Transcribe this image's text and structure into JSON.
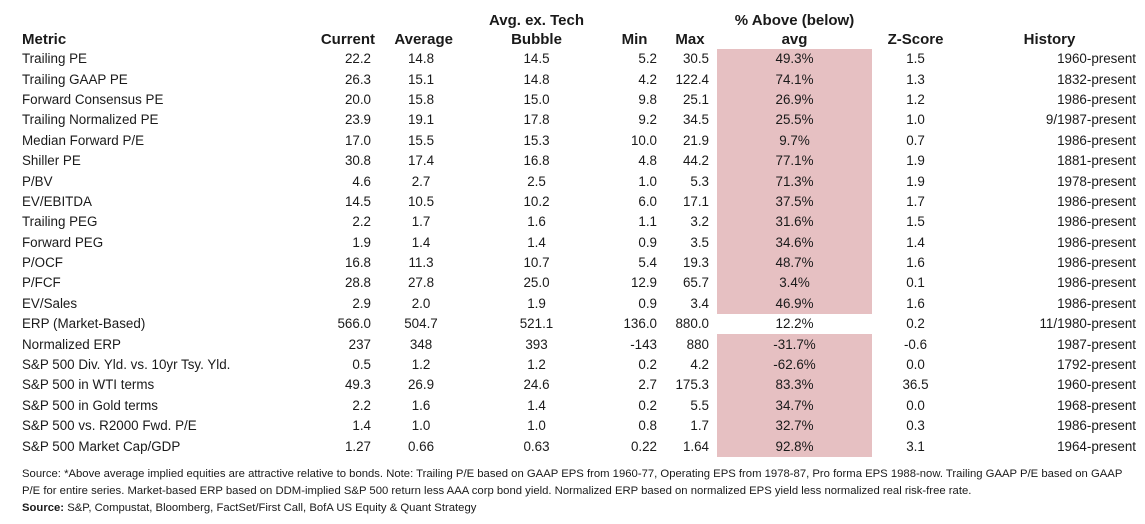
{
  "table": {
    "headers": {
      "metric": "Metric",
      "current": "Current",
      "average": "Average",
      "avg_ex_top": "Avg. ex. Tech",
      "avg_ex_bottom": "Bubble",
      "min": "Min",
      "max": "Max",
      "pct_top": "% Above (below)",
      "pct_bottom": "avg",
      "zscore": "Z-Score",
      "history": "History"
    },
    "highlight_color": "#e6c0c2",
    "rows": [
      {
        "metric": "Trailing PE",
        "current": "22.2",
        "average": "14.8",
        "avg_ex": "14.5",
        "min": "5.2",
        "max": "30.5",
        "pct": "49.3%",
        "z": "1.5",
        "history": "1960-present",
        "highlight": true
      },
      {
        "metric": "Trailing GAAP PE",
        "current": "26.3",
        "average": "15.1",
        "avg_ex": "14.8",
        "min": "4.2",
        "max": "122.4",
        "pct": "74.1%",
        "z": "1.3",
        "history": "1832-present",
        "highlight": true
      },
      {
        "metric": "Forward Consensus PE",
        "current": "20.0",
        "average": "15.8",
        "avg_ex": "15.0",
        "min": "9.8",
        "max": "25.1",
        "pct": "26.9%",
        "z": "1.2",
        "history": "1986-present",
        "highlight": true
      },
      {
        "metric": "Trailing Normalized PE",
        "current": "23.9",
        "average": "19.1",
        "avg_ex": "17.8",
        "min": "9.2",
        "max": "34.5",
        "pct": "25.5%",
        "z": "1.0",
        "history": "9/1987-present",
        "highlight": true
      },
      {
        "metric": "Median Forward P/E",
        "current": "17.0",
        "average": "15.5",
        "avg_ex": "15.3",
        "min": "10.0",
        "max": "21.9",
        "pct": "9.7%",
        "z": "0.7",
        "history": "1986-present",
        "highlight": true
      },
      {
        "metric": "Shiller PE",
        "current": "30.8",
        "average": "17.4",
        "avg_ex": "16.8",
        "min": "4.8",
        "max": "44.2",
        "pct": "77.1%",
        "z": "1.9",
        "history": "1881-present",
        "highlight": true
      },
      {
        "metric": "P/BV",
        "current": "4.6",
        "average": "2.7",
        "avg_ex": "2.5",
        "min": "1.0",
        "max": "5.3",
        "pct": "71.3%",
        "z": "1.9",
        "history": "1978-present",
        "highlight": true
      },
      {
        "metric": "EV/EBITDA",
        "current": "14.5",
        "average": "10.5",
        "avg_ex": "10.2",
        "min": "6.0",
        "max": "17.1",
        "pct": "37.5%",
        "z": "1.7",
        "history": "1986-present",
        "highlight": true
      },
      {
        "metric": "Trailing PEG",
        "current": "2.2",
        "average": "1.7",
        "avg_ex": "1.6",
        "min": "1.1",
        "max": "3.2",
        "pct": "31.6%",
        "z": "1.5",
        "history": "1986-present",
        "highlight": true
      },
      {
        "metric": "Forward PEG",
        "current": "1.9",
        "average": "1.4",
        "avg_ex": "1.4",
        "min": "0.9",
        "max": "3.5",
        "pct": "34.6%",
        "z": "1.4",
        "history": "1986-present",
        "highlight": true
      },
      {
        "metric": "P/OCF",
        "current": "16.8",
        "average": "11.3",
        "avg_ex": "10.7",
        "min": "5.4",
        "max": "19.3",
        "pct": "48.7%",
        "z": "1.6",
        "history": "1986-present",
        "highlight": true
      },
      {
        "metric": "P/FCF",
        "current": "28.8",
        "average": "27.8",
        "avg_ex": "25.0",
        "min": "12.9",
        "max": "65.7",
        "pct": "3.4%",
        "z": "0.1",
        "history": "1986-present",
        "highlight": true
      },
      {
        "metric": "EV/Sales",
        "current": "2.9",
        "average": "2.0",
        "avg_ex": "1.9",
        "min": "0.9",
        "max": "3.4",
        "pct": "46.9%",
        "z": "1.6",
        "history": "1986-present",
        "highlight": true
      },
      {
        "metric": "ERP (Market-Based)",
        "current": "566.0",
        "average": "504.7",
        "avg_ex": "521.1",
        "min": "136.0",
        "max": "880.0",
        "pct": "12.2%",
        "z": "0.2",
        "history": "11/1980-present",
        "highlight": false
      },
      {
        "metric": "Normalized ERP",
        "current": "237",
        "average": "348",
        "avg_ex": "393",
        "min": "-143",
        "max": "880",
        "pct": "-31.7%",
        "z": "-0.6",
        "history": "1987-present",
        "highlight": true
      },
      {
        "metric": "S&P 500 Div. Yld. vs. 10yr Tsy. Yld.",
        "current": "0.5",
        "average": "1.2",
        "avg_ex": "1.2",
        "min": "0.2",
        "max": "4.2",
        "pct": "-62.6%",
        "z": "0.0",
        "history": "1792-present",
        "highlight": true
      },
      {
        "metric": "S&P 500 in WTI terms",
        "current": "49.3",
        "average": "26.9",
        "avg_ex": "24.6",
        "min": "2.7",
        "max": "175.3",
        "pct": "83.3%",
        "z": "36.5",
        "history": "1960-present",
        "highlight": true
      },
      {
        "metric": "S&P 500 in Gold terms",
        "current": "2.2",
        "average": "1.6",
        "avg_ex": "1.4",
        "min": "0.2",
        "max": "5.5",
        "pct": "34.7%",
        "z": "0.0",
        "history": "1968-present",
        "highlight": true
      },
      {
        "metric": "S&P 500 vs. R2000 Fwd. P/E",
        "current": "1.4",
        "average": "1.0",
        "avg_ex": "1.0",
        "min": "0.8",
        "max": "1.7",
        "pct": "32.7%",
        "z": "0.3",
        "history": "1986-present",
        "highlight": true
      },
      {
        "metric": "S&P 500 Market Cap/GDP",
        "current": "1.27",
        "average": "0.66",
        "avg_ex": "0.63",
        "min": "0.22",
        "max": "1.64",
        "pct": "92.8%",
        "z": "3.1",
        "history": "1964-present",
        "highlight": true
      }
    ]
  },
  "notes": {
    "line1": "Source: *Above average implied equities are attractive relative to bonds.  Note: Trailing P/E based on GAAP EPS from 1960-77, Operating EPS from 1978-87, Pro forma EPS 1988-now. Trailing GAAP P/E based on GAAP",
    "line2": "P/E for entire series. Market-based ERP based on DDM-implied S&P 500 return less AAA corp bond yield. Normalized ERP based on normalized EPS yield less normalized real risk-free rate.",
    "source_label": "Source:",
    "source_text": " S&P, Compustat, Bloomberg, FactSet/First Call, BofA US Equity & Quant Strategy"
  }
}
